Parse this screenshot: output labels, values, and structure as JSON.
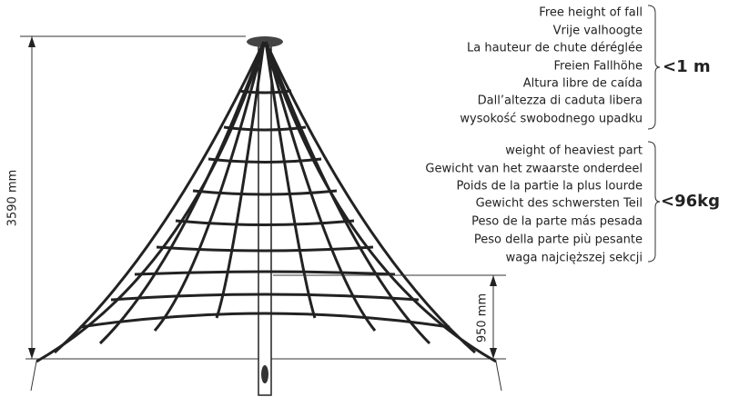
{
  "fall_height": {
    "lines": [
      "Free height of fall",
      "Vrije valhoogte",
      "La hauteur de chute déréglée",
      "Freien Fallhöhe",
      "Altura libre de caída",
      "Dall’altezza di caduta libera",
      "wysokość swobodnego upadku"
    ],
    "value": "<1 m"
  },
  "weight": {
    "lines": [
      "weight of heaviest part",
      "Gewicht van het zwaarste onderdeel",
      "Poids de la partie la plus lourde",
      "Gewicht des schwersten Teil",
      "Peso de la parte más pesada",
      "Peso della parte più pesante",
      "waga najcięższej sekcji"
    ],
    "value": "<96kg"
  },
  "dimensions": {
    "total_height": "3590 mm",
    "platform_height": "950 mm"
  }
}
